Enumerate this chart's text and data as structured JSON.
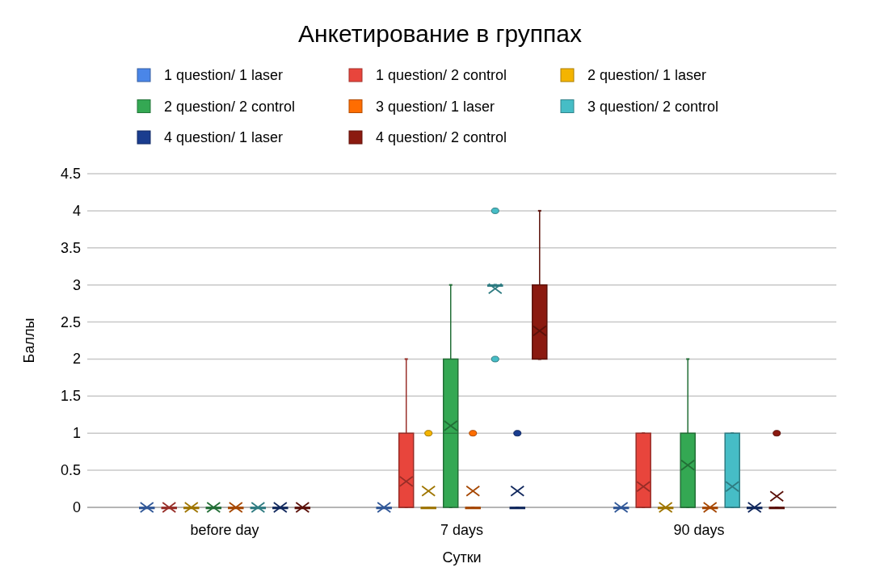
{
  "chart_data": {
    "type": "box",
    "title": "Анкетирование в группах",
    "xlabel": "Сутки",
    "ylabel": "Баллы",
    "categories": [
      "before day",
      "7 days",
      "90 days"
    ],
    "ylim": [
      0,
      4.5
    ],
    "yticks": [
      0,
      0.5,
      1,
      1.5,
      2,
      2.5,
      3,
      3.5,
      4,
      4.5
    ],
    "grid": "y",
    "legend": "top",
    "series": [
      {
        "name": "1 question/ 1 laser",
        "color": "#4a86e8",
        "boxes": [
          {
            "low": 0,
            "q1": 0,
            "median": 0,
            "q3": 0,
            "high": 0,
            "mean": 0
          },
          {
            "low": 0,
            "q1": 0,
            "median": 0,
            "q3": 0,
            "high": 0,
            "mean": 0
          },
          {
            "low": 0,
            "q1": 0,
            "median": 0,
            "q3": 0,
            "high": 0,
            "mean": 0
          }
        ]
      },
      {
        "name": "1 question/ 2 control",
        "color": "#e8453c",
        "boxes": [
          {
            "low": 0,
            "q1": 0,
            "median": 0,
            "q3": 0,
            "high": 0,
            "mean": 0
          },
          {
            "low": 0,
            "q1": 0,
            "median": 0,
            "q3": 1,
            "high": 2,
            "mean": 0.35
          },
          {
            "low": 0,
            "q1": 0,
            "median": 0,
            "q3": 1,
            "high": 1,
            "mean": 0.28
          }
        ]
      },
      {
        "name": "2 question/ 1 laser",
        "color": "#f4b400",
        "boxes": [
          {
            "low": 0,
            "q1": 0,
            "median": 0,
            "q3": 0,
            "high": 0,
            "mean": 0
          },
          {
            "low": 0,
            "q1": 0,
            "median": 0,
            "q3": 0,
            "high": 0,
            "mean": 0.22,
            "outliers": [
              1
            ]
          },
          {
            "low": 0,
            "q1": 0,
            "median": 0,
            "q3": 0,
            "high": 0,
            "mean": 0
          }
        ]
      },
      {
        "name": "2 question/ 2 control",
        "color": "#34a853",
        "boxes": [
          {
            "low": 0,
            "q1": 0,
            "median": 0,
            "q3": 0,
            "high": 0,
            "mean": 0
          },
          {
            "low": 0,
            "q1": 0,
            "median": 1,
            "q3": 2,
            "high": 3,
            "mean": 1.1
          },
          {
            "low": 0,
            "q1": 0,
            "median": 0,
            "q3": 1,
            "high": 2,
            "mean": 0.57
          }
        ]
      },
      {
        "name": "3 question/ 1 laser",
        "color": "#ff6d01",
        "boxes": [
          {
            "low": 0,
            "q1": 0,
            "median": 0,
            "q3": 0,
            "high": 0,
            "mean": 0
          },
          {
            "low": 0,
            "q1": 0,
            "median": 0,
            "q3": 0,
            "high": 0,
            "mean": 0.22,
            "outliers": [
              1
            ]
          },
          {
            "low": 0,
            "q1": 0,
            "median": 0,
            "q3": 0,
            "high": 0,
            "mean": 0
          }
        ]
      },
      {
        "name": "3 question/ 2 control",
        "color": "#46bdc6",
        "boxes": [
          {
            "low": 0,
            "q1": 0,
            "median": 0,
            "q3": 0,
            "high": 0,
            "mean": 0
          },
          {
            "low": 3,
            "q1": 3,
            "median": 3,
            "q3": 3,
            "high": 3,
            "mean": 2.95,
            "outliers": [
              2,
              4
            ]
          },
          {
            "low": 0,
            "q1": 0,
            "median": 0,
            "q3": 1,
            "high": 1,
            "mean": 0.28
          }
        ]
      },
      {
        "name": "4 question/ 1 laser",
        "color": "#1a3d8f",
        "boxes": [
          {
            "low": 0,
            "q1": 0,
            "median": 0,
            "q3": 0,
            "high": 0,
            "mean": 0
          },
          {
            "low": 0,
            "q1": 0,
            "median": 0,
            "q3": 0,
            "high": 0,
            "mean": 0.22,
            "outliers": [
              1
            ]
          },
          {
            "low": 0,
            "q1": 0,
            "median": 0,
            "q3": 0,
            "high": 0,
            "mean": 0
          }
        ]
      },
      {
        "name": "4 question/ 2 control",
        "color": "#8b1a10",
        "boxes": [
          {
            "low": 0,
            "q1": 0,
            "median": 0,
            "q3": 0,
            "high": 0,
            "mean": 0
          },
          {
            "low": 2,
            "q1": 2,
            "median": 2,
            "q3": 3,
            "high": 4,
            "mean": 2.38
          },
          {
            "low": 0,
            "q1": 0,
            "median": 0,
            "q3": 0,
            "high": 0,
            "mean": 0.15,
            "outliers": [
              1
            ]
          }
        ]
      }
    ]
  }
}
